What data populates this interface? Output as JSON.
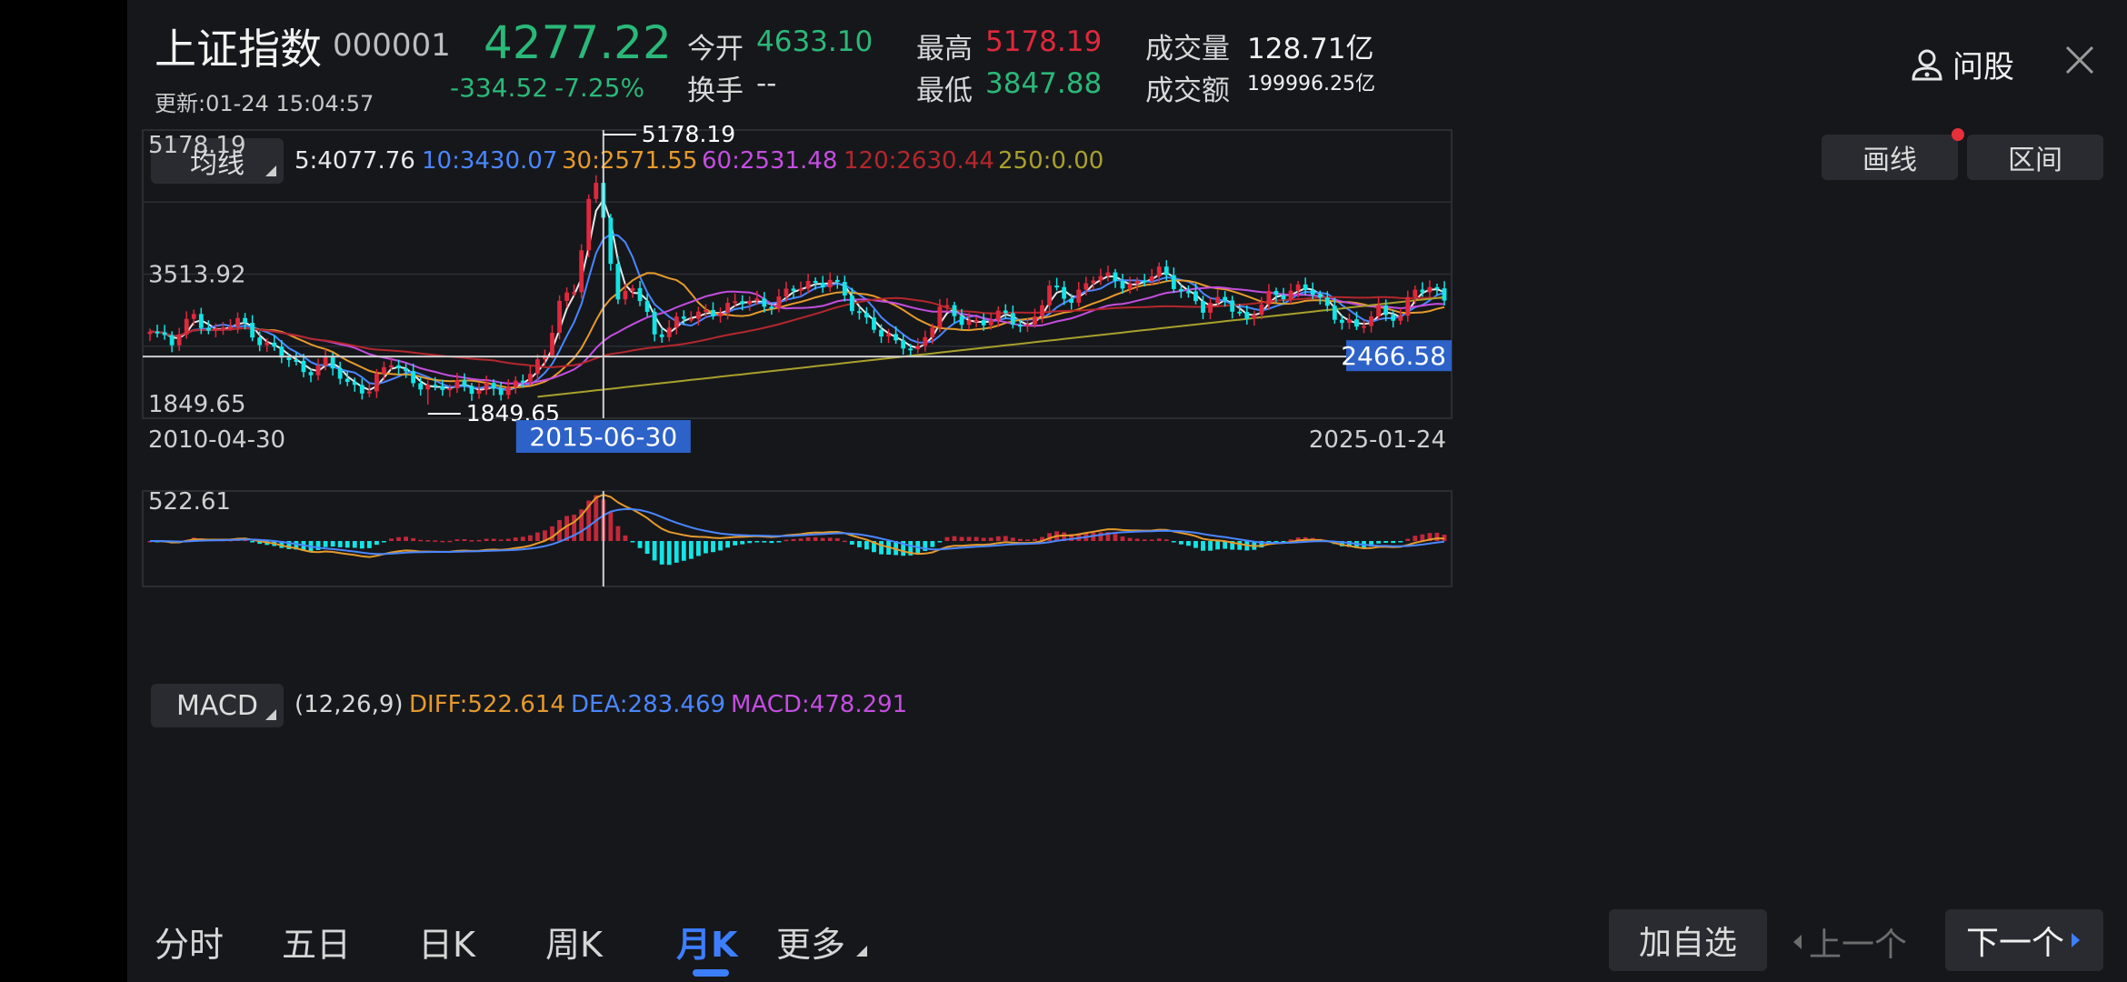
{
  "header": {
    "name": "上证指数",
    "code": "000001",
    "price": "4277.22",
    "change": "-334.52",
    "change_pct": "-7.25%",
    "update_time": "更新:01-24 15:04:57",
    "open_label": "今开",
    "open_value": "4633.10",
    "turnover_label": "换手",
    "turnover_value": "--",
    "high_label": "最高",
    "high_value": "5178.19",
    "low_label": "最低",
    "low_value": "3847.88",
    "volume_label": "成交量",
    "volume_value": "128.71亿",
    "amount_label": "成交额",
    "amount_value": "199996.25亿",
    "ask_label": "问股"
  },
  "colors": {
    "up": "#e0283c",
    "down": "#12e5e5",
    "ma5": "#e8e8e8",
    "ma10": "#4a86ff",
    "ma30": "#e59a2c",
    "ma60": "#c44ee0",
    "ma120": "#b3272c",
    "ma250": "#a8a02c",
    "bg": "#16171b",
    "accent": "#3d7eff"
  },
  "ma_bar": {
    "selector_label": "均线",
    "ma5": "5:4077.76",
    "ma10": "10:3430.07",
    "ma30": "30:2571.55",
    "ma60": "60:2531.48",
    "ma120": "120:2630.44",
    "ma250": "250:0.00",
    "draw_label": "画线",
    "range_label": "区间"
  },
  "chart_data": [
    {
      "type": "candlestick",
      "axis_labels": {
        "top": "5178.19",
        "mid": "3513.92",
        "bottom": "1849.65"
      },
      "x_start": "2010-04-30",
      "x_end": "2025-01-24",
      "crosshair_date": "2015-06-30",
      "crosshair_price": "2466.58",
      "annot_high": "5178.19",
      "annot_low": "1849.65",
      "ylim": [
        1849.65,
        5178.19
      ],
      "monthly_close_samples": [
        [
          "2010-04",
          2870
        ],
        [
          "2010-07",
          2640
        ],
        [
          "2010-10",
          2980
        ],
        [
          "2011-01",
          2790
        ],
        [
          "2011-04",
          2910
        ],
        [
          "2011-07",
          2700
        ],
        [
          "2011-10",
          2470
        ],
        [
          "2012-01",
          2290
        ],
        [
          "2012-04",
          2400
        ],
        [
          "2012-07",
          2100
        ],
        [
          "2012-10",
          2070
        ],
        [
          "2013-01",
          2380
        ],
        [
          "2013-04",
          2180
        ],
        [
          "2013-07",
          2000
        ],
        [
          "2013-10",
          2140
        ],
        [
          "2014-01",
          2030
        ],
        [
          "2014-04",
          2030
        ],
        [
          "2014-07",
          2200
        ],
        [
          "2014-10",
          2420
        ],
        [
          "2014-12",
          3230
        ],
        [
          "2015-02",
          3310
        ],
        [
          "2015-04",
          4440
        ],
        [
          "2015-05",
          4610
        ],
        [
          "2015-06",
          4277
        ],
        [
          "2015-08",
          3200
        ],
        [
          "2015-10",
          3380
        ],
        [
          "2016-01",
          2740
        ],
        [
          "2016-04",
          2940
        ],
        [
          "2016-07",
          2980
        ],
        [
          "2016-10",
          3100
        ],
        [
          "2017-01",
          3160
        ],
        [
          "2017-04",
          3150
        ],
        [
          "2017-07",
          3270
        ],
        [
          "2017-10",
          3390
        ],
        [
          "2018-01",
          3480
        ],
        [
          "2018-04",
          3080
        ],
        [
          "2018-07",
          2880
        ],
        [
          "2018-10",
          2600
        ],
        [
          "2019-01",
          2580
        ],
        [
          "2019-04",
          3080
        ],
        [
          "2019-07",
          2930
        ],
        [
          "2019-10",
          2930
        ],
        [
          "2020-01",
          2980
        ],
        [
          "2020-04",
          2860
        ],
        [
          "2020-07",
          3310
        ],
        [
          "2020-10",
          3230
        ],
        [
          "2021-01",
          3480
        ],
        [
          "2021-04",
          3450
        ],
        [
          "2021-07",
          3400
        ],
        [
          "2021-10",
          3550
        ],
        [
          "2022-01",
          3360
        ],
        [
          "2022-04",
          3050
        ],
        [
          "2022-07",
          3250
        ],
        [
          "2022-10",
          2890
        ],
        [
          "2023-01",
          3260
        ],
        [
          "2023-04",
          3320
        ],
        [
          "2023-07",
          3290
        ],
        [
          "2023-10",
          3020
        ],
        [
          "2024-01",
          2790
        ],
        [
          "2024-04",
          3100
        ],
        [
          "2024-07",
          2940
        ],
        [
          "2024-09",
          3340
        ],
        [
          "2024-12",
          3350
        ],
        [
          "2025-01",
          3250
        ]
      ]
    },
    {
      "type": "bar",
      "selector_label": "MACD",
      "params": "(12,26,9)",
      "diff": "DIFF:522.614",
      "dea": "DEA:283.469",
      "macd": "MACD:478.291",
      "axis_top": "522.61"
    }
  ],
  "tabs": [
    "分时",
    "五日",
    "日K",
    "周K",
    "月K",
    "更多"
  ],
  "active_tab": "月K",
  "footer": {
    "add_fav": "加自选",
    "prev": "上一个",
    "next": "下一个"
  }
}
